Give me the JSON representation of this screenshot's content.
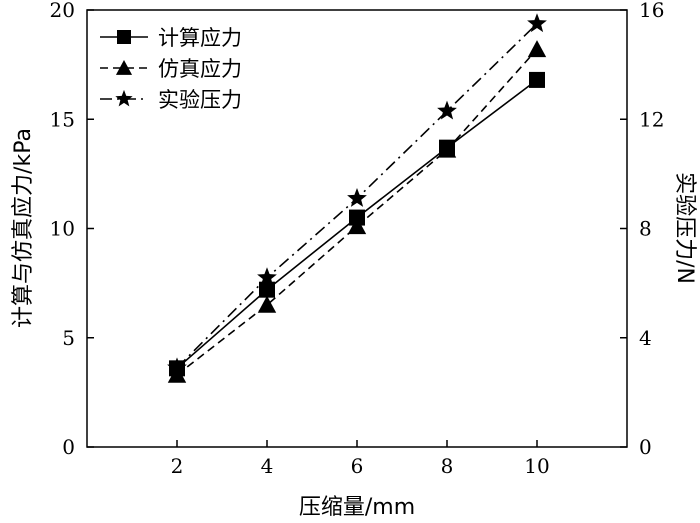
{
  "chart_data": {
    "type": "line",
    "xlabel": "压缩量/mm",
    "ylabel": "计算与仿真应力/kPa",
    "y2label": "实验压力/N",
    "x": [
      2,
      4,
      6,
      8,
      10
    ],
    "xlim": [
      0,
      12
    ],
    "xticks": [
      2,
      4,
      6,
      8,
      10
    ],
    "ylim": [
      0,
      20
    ],
    "yticks": [
      0,
      5,
      10,
      15,
      20
    ],
    "y2lim": [
      0,
      16
    ],
    "y2ticks": [
      0,
      4,
      8,
      12,
      16
    ],
    "grid": false,
    "legend_position": "top-left",
    "series": [
      {
        "name": "计算应力",
        "axis": "left",
        "marker": "square",
        "line_style": "solid",
        "values": [
          3.6,
          7.2,
          10.5,
          13.7,
          16.8
        ]
      },
      {
        "name": "仿真应力",
        "axis": "left",
        "marker": "triangle",
        "line_style": "dashed",
        "values": [
          3.3,
          6.5,
          10.1,
          13.6,
          18.2
        ]
      },
      {
        "name": "实验压力",
        "axis": "right",
        "marker": "star",
        "line_style": "dashdot",
        "values": [
          2.9,
          6.2,
          9.1,
          12.3,
          15.5
        ]
      }
    ]
  }
}
